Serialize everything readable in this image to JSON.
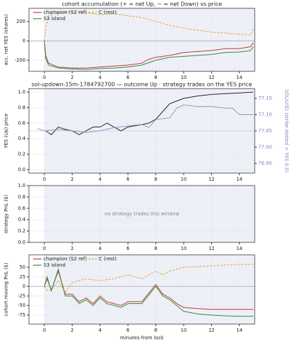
{
  "chart_data": [
    {
      "type": "line",
      "title": "cohort accumulation (+ = net Up, − = net Down) vs price",
      "ylabel": "acc. net YES (shares)",
      "xlim": [
        -1.1,
        15.1
      ],
      "xticks": [
        0,
        2,
        4,
        6,
        8,
        10,
        12,
        14
      ],
      "ylim": [
        -314,
        336
      ],
      "yticks": [
        -200,
        0,
        200
      ],
      "hline": 0,
      "shade_from": 0,
      "legend": "upper left",
      "series": [
        {
          "name": "champion (S2 ref)",
          "color": "#c0392b",
          "dash": false,
          "x": [
            0,
            0.1,
            0.3,
            1,
            2,
            3,
            4,
            5,
            6,
            7,
            7.5,
            8,
            9,
            10,
            11,
            12,
            13,
            14,
            14.8,
            15
          ],
          "values": [
            0,
            -150,
            -230,
            -270,
            -280,
            -280,
            -270,
            -260,
            -250,
            -230,
            -190,
            -170,
            -150,
            -120,
            -110,
            -100,
            -80,
            -80,
            -60,
            -20
          ]
        },
        {
          "name": "S3 island",
          "color": "#2e8b3a",
          "dash": false,
          "x": [
            0,
            0.1,
            0.3,
            1,
            2,
            3,
            4,
            5,
            6,
            7,
            8,
            9,
            10,
            11,
            12,
            13,
            14,
            14.8,
            15
          ],
          "values": [
            0,
            -180,
            -250,
            -280,
            -290,
            -295,
            -285,
            -280,
            -270,
            -250,
            -200,
            -170,
            -160,
            -150,
            -140,
            -120,
            -115,
            -100,
            -60
          ]
        },
        {
          "name": "C (rest)",
          "color": "#e6a020",
          "dash": true,
          "x": [
            0,
            0.1,
            0.3,
            1,
            2,
            3,
            4,
            5,
            6,
            7,
            8,
            9,
            10,
            11,
            12,
            13,
            14,
            14.8,
            15
          ],
          "values": [
            0,
            130,
            260,
            290,
            300,
            290,
            270,
            280,
            260,
            240,
            200,
            160,
            130,
            110,
            90,
            80,
            70,
            60,
            120
          ]
        }
      ]
    },
    {
      "type": "line",
      "title": "sol-updown-15m-1784792700 — outcome Up · strategy trades on the YES price",
      "ylabel": "YES (Up) price",
      "y2label": "SOL/USD (strike dotted = YES 0.5)",
      "xlim": [
        -1.1,
        15.1
      ],
      "xticks": [
        0,
        2,
        4,
        6,
        8,
        10,
        12,
        14
      ],
      "ylim": [
        -0.045,
        1.045
      ],
      "yticks": [
        {
          "value": 0,
          "label": "0.0"
        },
        0.2,
        0.4,
        0.6,
        0.8,
        {
          "value": 1,
          "label": "1.0"
        }
      ],
      "y2lim": [
        76.92,
        77.18
      ],
      "y2ticks": [
        76.95,
        {
          "value": 77,
          "label": "77.00"
        },
        77.05,
        {
          "value": 77.1,
          "label": "77.10"
        },
        77.15
      ],
      "hline": 0.5,
      "shade_from": 0,
      "series": [
        {
          "name": "YES",
          "color": "#222222",
          "dash": false,
          "x": [
            0.1,
            0.5,
            1,
            1.5,
            2,
            2.5,
            3,
            3.5,
            4,
            4.5,
            5,
            5.5,
            6,
            7,
            7.5,
            8,
            8.5,
            9,
            10,
            11,
            12,
            13,
            14,
            15
          ],
          "values": [
            0.5,
            0.45,
            0.55,
            0.52,
            0.5,
            0.45,
            0.5,
            0.55,
            0.55,
            0.6,
            0.55,
            0.5,
            0.55,
            0.58,
            0.6,
            0.65,
            0.75,
            0.85,
            0.92,
            0.95,
            0.97,
            0.98,
            0.99,
            1.0
          ]
        },
        {
          "name": "SOL/USD",
          "color": "#9e8fc8",
          "dash": false,
          "axis": "y2",
          "x": [
            -0.5,
            0,
            1,
            2,
            3,
            4,
            5,
            6,
            7,
            7.5,
            8,
            9,
            9.5,
            10,
            11,
            12,
            13,
            13.5,
            14,
            15
          ],
          "values": [
            77.057,
            77.05,
            77.055,
            77.05,
            77.045,
            77.05,
            77.06,
            77.065,
            77.07,
            77.06,
            77.085,
            77.09,
            77.12,
            77.13,
            77.125,
            77.125,
            77.12,
            77.12,
            77.1,
            77.1
          ]
        }
      ]
    },
    {
      "type": "empty",
      "ylabel": "strategy PnL ($)",
      "annotation": "no strategy trades this window",
      "xlim": [
        -1.1,
        15.1
      ],
      "xticks": [
        0,
        2,
        4,
        6,
        8,
        10,
        12,
        14
      ],
      "ylim": [
        0,
        1
      ],
      "yticks": [
        {
          "value": 0,
          "label": "0.0"
        },
        0.2,
        0.4,
        0.6,
        0.8,
        {
          "value": 1,
          "label": "1.0"
        }
      ],
      "shade_from": 0
    },
    {
      "type": "line",
      "ylabel": "cohort moving PnL ($)",
      "xlabel": "minutes from lock",
      "xlim": [
        -1.1,
        15.1
      ],
      "xticks": [
        0,
        2,
        4,
        6,
        8,
        10,
        12,
        14
      ],
      "ylim": [
        -98.5,
        82.6
      ],
      "yticks": [
        -75,
        -50,
        -25,
        0,
        25,
        50
      ],
      "hline": 0,
      "shade_from": 0,
      "legend": "upper left",
      "series": [
        {
          "name": "champion (S2 ref)",
          "color": "#c0392b",
          "dash": false,
          "x": [
            0,
            0.2,
            0.5,
            1,
            1.5,
            2,
            2.5,
            3,
            3.5,
            4,
            4.5,
            5,
            5.5,
            6,
            7,
            8,
            8.5,
            9,
            9.5,
            10,
            11,
            12,
            13,
            14,
            15
          ],
          "values": [
            0,
            20,
            -10,
            40,
            -20,
            -20,
            -40,
            -30,
            -45,
            -25,
            -40,
            -45,
            -50,
            -40,
            -40,
            5,
            -20,
            -30,
            -45,
            -55,
            -58,
            -60,
            -60,
            -60,
            -60
          ]
        },
        {
          "name": "S3 island",
          "color": "#2e8b3a",
          "dash": false,
          "x": [
            0,
            0.2,
            0.5,
            1,
            1.5,
            2,
            2.5,
            3,
            3.5,
            4,
            4.5,
            5,
            5.5,
            6,
            7,
            8,
            8.5,
            9,
            9.5,
            10,
            11,
            12,
            13,
            14,
            15
          ],
          "values": [
            0,
            25,
            -12,
            45,
            -25,
            -25,
            -45,
            -35,
            -50,
            -30,
            -45,
            -50,
            -55,
            -45,
            -45,
            0,
            -25,
            -35,
            -50,
            -65,
            -72,
            -75,
            -77,
            -78,
            -78
          ]
        },
        {
          "name": "C (rest)",
          "color": "#e6a020",
          "dash": true,
          "x": [
            0,
            0.2,
            0.5,
            1,
            1.5,
            2,
            2.5,
            3,
            4,
            5,
            6,
            7,
            8,
            8.5,
            9,
            10,
            11,
            12,
            13,
            14,
            15
          ],
          "values": [
            0,
            -10,
            -10,
            15,
            -15,
            10,
            15,
            20,
            15,
            20,
            30,
            20,
            40,
            30,
            40,
            50,
            52,
            54,
            56,
            57,
            58
          ]
        }
      ]
    }
  ]
}
